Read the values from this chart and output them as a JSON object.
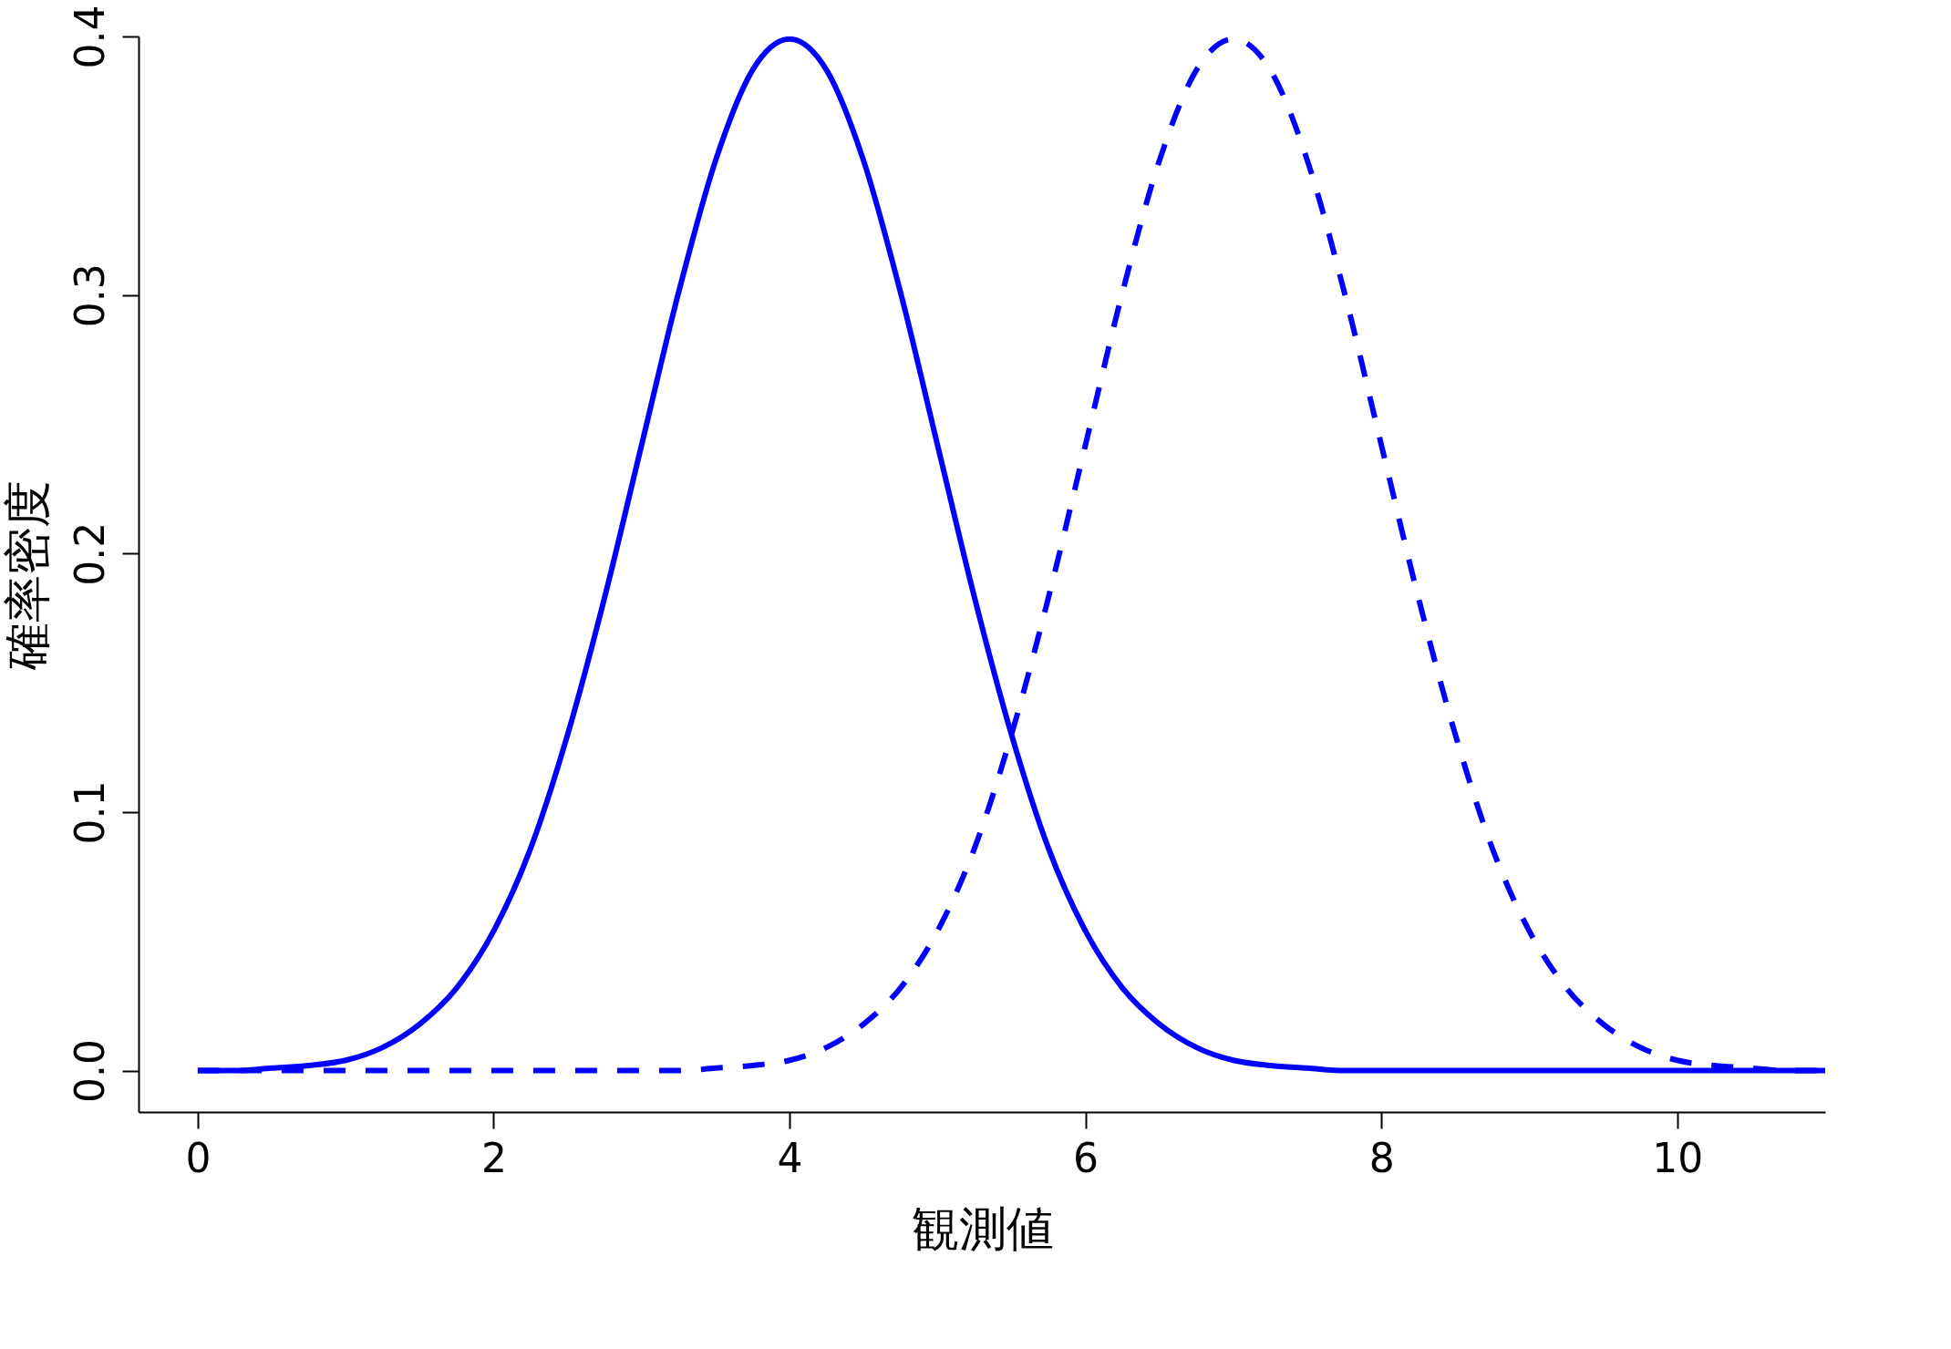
{
  "chart_data": {
    "type": "line",
    "xlabel": "観測値",
    "ylabel": "確率密度",
    "x": [
      0,
      0.25,
      0.5,
      0.75,
      1,
      1.25,
      1.5,
      1.75,
      2,
      2.25,
      2.5,
      2.75,
      3,
      3.25,
      3.5,
      3.75,
      4,
      4.25,
      4.5,
      4.75,
      5,
      5.25,
      5.5,
      5.75,
      6,
      6.25,
      6.5,
      6.75,
      7,
      7.25,
      7.5,
      7.75,
      8,
      8.25,
      8.5,
      8.75,
      9,
      9.25,
      9.5,
      9.75,
      10,
      10.25,
      10.5,
      10.75,
      11
    ],
    "series": [
      {
        "color": "#0000ff",
        "line_style": "solid",
        "values": [
          0,
          0,
          0.001,
          0.002,
          0.004,
          0.009,
          0.018,
          0.032,
          0.054,
          0.086,
          0.13,
          0.183,
          0.242,
          0.301,
          0.352,
          0.387,
          0.399,
          0.387,
          0.352,
          0.301,
          0.242,
          0.183,
          0.13,
          0.086,
          0.054,
          0.032,
          0.018,
          0.009,
          0.004,
          0.002,
          0.001,
          0,
          0,
          0,
          0,
          0,
          0,
          0,
          0,
          0,
          0,
          0,
          0,
          0,
          0
        ]
      },
      {
        "color": "#0000ff",
        "line_style": "dashed",
        "values": [
          0,
          0,
          0,
          0,
          0,
          0,
          0,
          0,
          0,
          0,
          0,
          0,
          0,
          0,
          0.001,
          0.002,
          0.004,
          0.009,
          0.018,
          0.032,
          0.054,
          0.086,
          0.13,
          0.183,
          0.242,
          0.301,
          0.352,
          0.387,
          0.399,
          0.387,
          0.352,
          0.301,
          0.242,
          0.183,
          0.13,
          0.086,
          0.054,
          0.032,
          0.018,
          0.009,
          0.004,
          0.002,
          0.001,
          0,
          0
        ]
      }
    ],
    "xlim": [
      -0.4,
      11
    ],
    "xticks": [
      0,
      2,
      4,
      6,
      8,
      10
    ],
    "ylim": [
      -0.016,
      0.4
    ],
    "yticks": [
      {
        "value": 0,
        "label": "0.0"
      },
      {
        "value": 0.1,
        "label": "0.1"
      },
      {
        "value": 0.2,
        "label": "0.2"
      },
      {
        "value": 0.3,
        "label": "0.3"
      },
      {
        "value": 0.4,
        "label": "0.4"
      }
    ],
    "grid": false
  }
}
